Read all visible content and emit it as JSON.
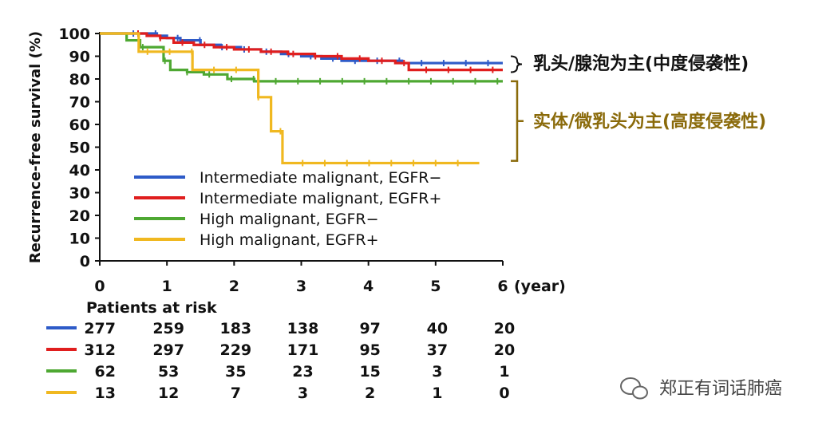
{
  "chart_data": {
    "type": "line",
    "step": true,
    "ylabel": "Recurrence-free survival (%)",
    "xlim": [
      0,
      6
    ],
    "ylim": [
      0,
      100
    ],
    "x_ticks": [
      "0",
      "1",
      "2",
      "3",
      "4",
      "5",
      "6"
    ],
    "x_unit": "(year)",
    "y_ticks": [
      "0",
      "10",
      "20",
      "30",
      "40",
      "50",
      "60",
      "70",
      "80",
      "90",
      "100"
    ],
    "legend_position": "lower-left",
    "series": [
      {
        "name": "Intermediate malignant, EGFR−",
        "color": "#2E5BC8",
        "x": [
          0,
          0.6,
          0.85,
          1.0,
          1.2,
          1.5,
          1.8,
          2.1,
          2.4,
          2.7,
          3.0,
          3.3,
          3.6,
          4.0,
          4.5,
          5.0,
          5.6,
          6.0
        ],
        "y": [
          100,
          100,
          99,
          98,
          97,
          95,
          94,
          93,
          92,
          91,
          90,
          89,
          88,
          88,
          87,
          87,
          87,
          87
        ]
      },
      {
        "name": "Intermediate malignant, EGFR+",
        "color": "#E01E1E",
        "x": [
          0,
          0.7,
          0.9,
          1.1,
          1.4,
          1.7,
          2.0,
          2.4,
          2.8,
          3.2,
          3.6,
          4.0,
          4.4,
          4.6,
          5.0,
          5.6,
          6.0
        ],
        "y": [
          100,
          99,
          98,
          96,
          95,
          94,
          93,
          92,
          91,
          90,
          89,
          88,
          87,
          84,
          84,
          84,
          84
        ]
      },
      {
        "name": "High malignant, EGFR−",
        "color": "#4EA832",
        "x": [
          0,
          0.4,
          0.6,
          0.95,
          1.05,
          1.3,
          1.55,
          1.9,
          2.3,
          3.0,
          4.0,
          5.0,
          6.0
        ],
        "y": [
          100,
          97,
          94,
          88,
          84,
          83,
          82,
          80,
          79,
          79,
          79,
          79,
          79
        ]
      },
      {
        "name": "High malignant, EGFR+",
        "color": "#F0B820",
        "x": [
          0,
          0.58,
          1.38,
          2.36,
          2.55,
          2.72,
          3.5,
          4.5,
          5.65
        ],
        "y": [
          100,
          92,
          84,
          72,
          57,
          43,
          43,
          43,
          43
        ]
      }
    ],
    "risk_table": {
      "title": "Patients at risk",
      "rows": [
        {
          "color": "#2E5BC8",
          "values": [
            "277",
            "259",
            "183",
            "138",
            "97",
            "40",
            "20"
          ]
        },
        {
          "color": "#E01E1E",
          "values": [
            "312",
            "297",
            "229",
            "171",
            "95",
            "37",
            "20"
          ]
        },
        {
          "color": "#4EA832",
          "values": [
            "62",
            "53",
            "35",
            "23",
            "15",
            "3",
            "1"
          ]
        },
        {
          "color": "#F0B820",
          "values": [
            "13",
            "12",
            "7",
            "3",
            "2",
            "1",
            "0"
          ]
        }
      ]
    },
    "annotations": [
      {
        "text": "乳头/腺泡为主(中度侵袭性)",
        "color": "#111111"
      },
      {
        "text": "实体/微乳头为主(高度侵袭性)",
        "color": "#8A6A0A"
      }
    ]
  },
  "watermark": {
    "text": "郑正有词话肺癌",
    "icon": "wechat-icon"
  }
}
